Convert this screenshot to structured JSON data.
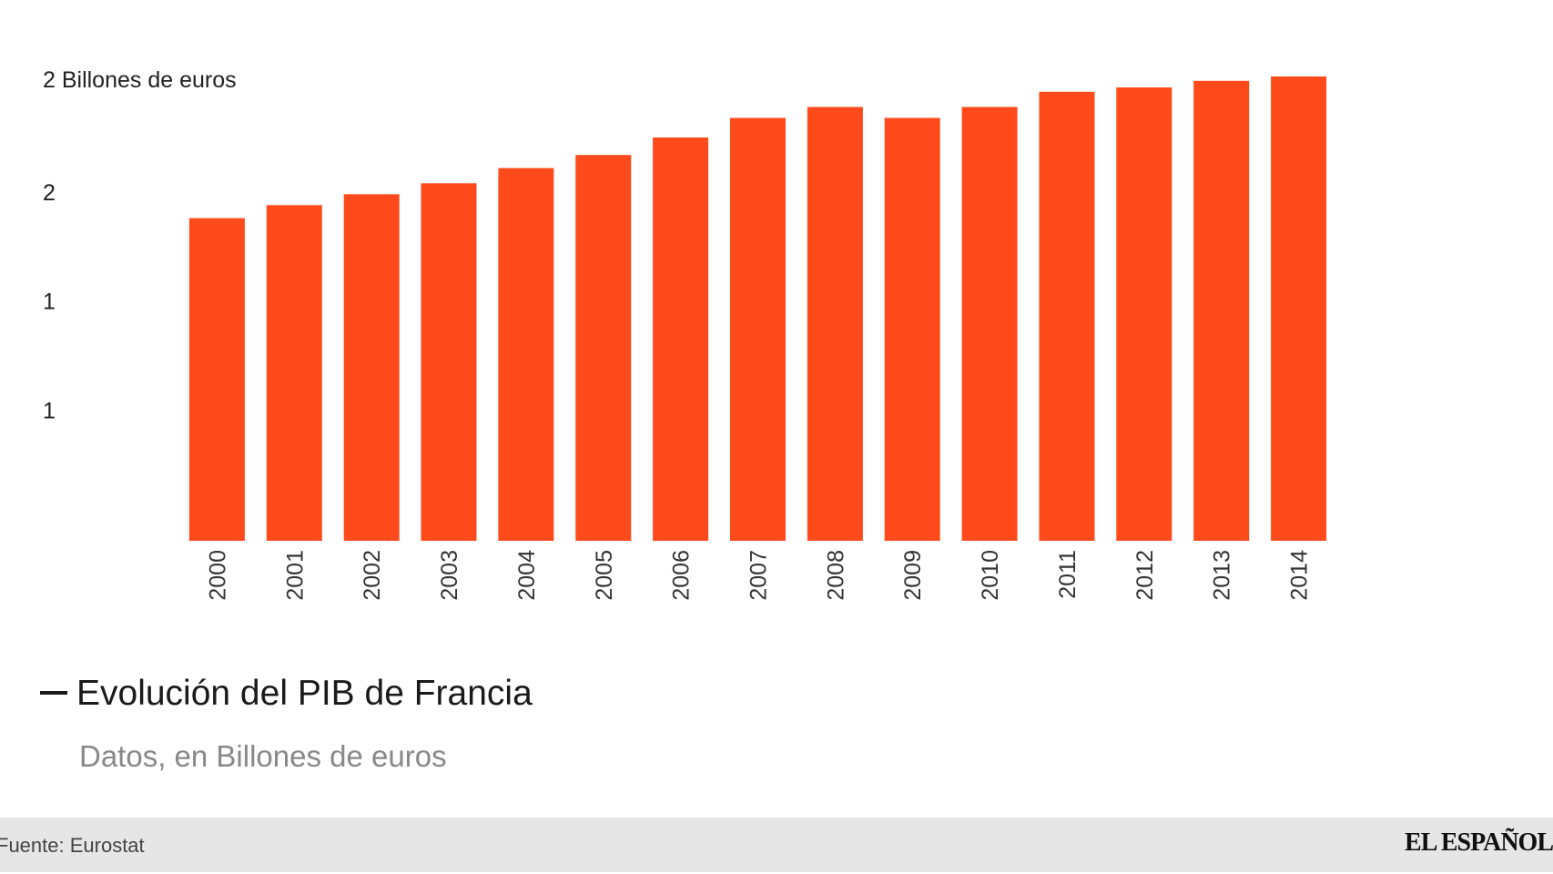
{
  "chart_data": {
    "type": "bar",
    "title": "Evolución del PIB de Francia",
    "subtitle": "Datos, en Billones de euros",
    "ylabel": "2 Billones de euros",
    "xlabel": "",
    "categories": [
      "2000",
      "2001",
      "2002",
      "2003",
      "2004",
      "2005",
      "2006",
      "2007",
      "2008",
      "2009",
      "2010",
      "2011",
      "2012",
      "2013",
      "2014"
    ],
    "values": [
      1.48,
      1.54,
      1.59,
      1.64,
      1.71,
      1.77,
      1.85,
      1.94,
      1.99,
      1.94,
      1.99,
      2.06,
      2.08,
      2.11,
      2.13
    ],
    "ylim": [
      0,
      2.13
    ],
    "yticks": [
      {
        "value": 0.6,
        "label": "1"
      },
      {
        "value": 1.1,
        "label": "1"
      },
      {
        "value": 1.6,
        "label": "2"
      }
    ],
    "bar_color": "#ff4a1c",
    "grid": false,
    "legend": "none"
  },
  "footer": {
    "source": "Fuente: Eurostat",
    "brand": "EL ESPAÑOL"
  }
}
